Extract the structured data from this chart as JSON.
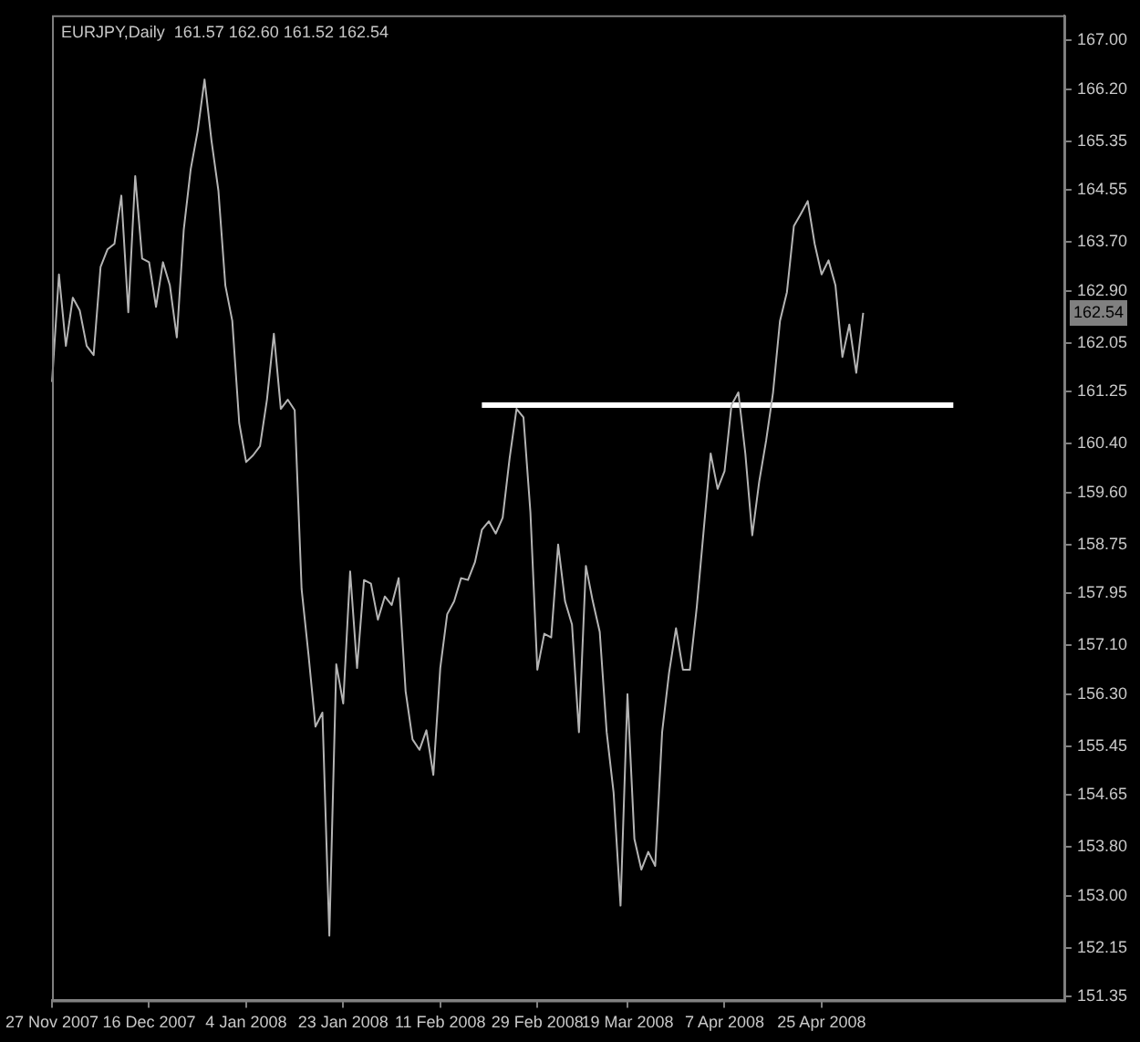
{
  "chart_data": {
    "type": "line",
    "title": "EURJPY,Daily  161.57 162.60 161.52 162.54",
    "categories": [
      "27 Nov 2007",
      null,
      null,
      null,
      null,
      null,
      null,
      null,
      null,
      null,
      null,
      null,
      null,
      null,
      "16 Dec 2007",
      null,
      null,
      null,
      null,
      null,
      null,
      null,
      null,
      null,
      null,
      null,
      null,
      null,
      "4 Jan 2008",
      null,
      null,
      null,
      null,
      null,
      null,
      null,
      null,
      null,
      null,
      null,
      null,
      null,
      "23 Jan 2008",
      null,
      null,
      null,
      null,
      null,
      null,
      null,
      null,
      null,
      null,
      null,
      null,
      null,
      "11 Feb 2008",
      null,
      null,
      null,
      null,
      null,
      null,
      null,
      null,
      null,
      null,
      null,
      null,
      null,
      "29 Feb 2008",
      null,
      null,
      null,
      null,
      null,
      null,
      null,
      null,
      null,
      null,
      null,
      null,
      "19 Mar 2008",
      null,
      null,
      null,
      null,
      null,
      null,
      null,
      null,
      null,
      null,
      null,
      null,
      null,
      "7 Apr 2008",
      null,
      null,
      null,
      null,
      null,
      null,
      null,
      null,
      null,
      null,
      null,
      null,
      null,
      "25 Apr 2008",
      null,
      null,
      null,
      null,
      null,
      null,
      null,
      null,
      null,
      null,
      null,
      null,
      null,
      null,
      null,
      null,
      null,
      null,
      null,
      null,
      null,
      null,
      null,
      null,
      null,
      null,
      null,
      null,
      null,
      null,
      null,
      null,
      null,
      null,
      null
    ],
    "series": [
      {
        "color": "#b4b4b4",
        "values": [
          161.41,
          163.17,
          162.0,
          162.79,
          162.58,
          162.0,
          161.85,
          163.29,
          163.58,
          163.67,
          164.46,
          162.55,
          164.78,
          163.43,
          163.37,
          162.64,
          163.37,
          162.99,
          162.14,
          163.9,
          164.89,
          165.51,
          166.36,
          165.36,
          164.54,
          162.99,
          162.41,
          160.74,
          160.1,
          160.21,
          160.36,
          161.12,
          162.2,
          160.97,
          161.12,
          160.95,
          158.02,
          156.94,
          155.77,
          156.0,
          152.35,
          156.79,
          156.15,
          158.31,
          156.73,
          158.17,
          158.11,
          157.52,
          157.9,
          157.76,
          158.2,
          156.35,
          155.56,
          155.39,
          155.71,
          154.98,
          156.73,
          157.61,
          157.82,
          158.2,
          158.17,
          158.46,
          158.99,
          159.13,
          158.93,
          159.19,
          160.16,
          160.97,
          160.83,
          159.28,
          156.7,
          157.29,
          157.23,
          158.75,
          157.82,
          157.44,
          155.68,
          158.4,
          157.82,
          157.32,
          155.68,
          154.69,
          152.84,
          156.3,
          153.93,
          153.43,
          153.72,
          153.49,
          155.68,
          156.65,
          157.38,
          156.7,
          156.7,
          157.73,
          158.99,
          160.24,
          159.66,
          159.95,
          161.03,
          161.24,
          160.24,
          158.9,
          159.78,
          160.45,
          161.24,
          162.41,
          162.88,
          163.96,
          164.16,
          164.37,
          163.67,
          163.17,
          163.4,
          162.99,
          161.82,
          162.35,
          161.56,
          162.54,
          null,
          null,
          null,
          null,
          null,
          null,
          null,
          null,
          null,
          null,
          null,
          null,
          null,
          null,
          null,
          null,
          null,
          null,
          null,
          null,
          null,
          null,
          null,
          null,
          null,
          null,
          null,
          null,
          null
        ]
      },
      {
        "color": "#ffffff",
        "values": [
          null,
          null,
          null,
          null,
          null,
          null,
          null,
          null,
          null,
          null,
          null,
          null,
          null,
          null,
          null,
          null,
          null,
          null,
          null,
          null,
          null,
          null,
          null,
          null,
          null,
          null,
          null,
          null,
          null,
          null,
          null,
          null,
          null,
          null,
          null,
          null,
          null,
          null,
          null,
          null,
          null,
          null,
          null,
          null,
          null,
          null,
          null,
          null,
          null,
          null,
          null,
          null,
          null,
          null,
          null,
          null,
          null,
          null,
          null,
          null,
          null,
          null,
          161.03,
          null,
          null,
          null,
          null,
          null,
          null,
          null,
          null,
          null,
          null,
          null,
          null,
          null,
          null,
          null,
          null,
          null,
          null,
          null,
          null,
          null,
          null,
          null,
          null,
          null,
          null,
          null,
          null,
          null,
          null,
          null,
          null,
          null,
          null,
          null,
          null,
          null,
          null,
          null,
          null,
          null,
          null,
          null,
          null,
          null,
          null,
          null,
          null,
          null,
          null,
          null,
          null,
          null,
          null,
          null,
          null,
          null,
          null,
          null,
          null,
          null,
          null,
          null,
          null,
          null,
          null,
          null,
          161.03,
          null,
          null,
          null,
          null,
          null,
          null,
          null,
          null,
          null,
          null,
          null,
          null,
          null,
          null,
          null,
          null
        ]
      }
    ],
    "ylim": [
      151.29,
      167.41
    ],
    "yticks": [
      {
        "value": 167,
        "label": "167.00"
      },
      {
        "value": 166.2,
        "label": "166.20"
      },
      {
        "value": 165.35,
        "label": "165.35"
      },
      {
        "value": 164.55,
        "label": "164.55"
      },
      {
        "value": 163.7,
        "label": "163.70"
      },
      {
        "value": 162.9,
        "label": "162.90"
      },
      {
        "value": 162.05,
        "label": "162.05"
      },
      {
        "value": 161.25,
        "label": "161.25"
      },
      {
        "value": 160.4,
        "label": "160.40"
      },
      {
        "value": 159.6,
        "label": "159.60"
      },
      {
        "value": 158.75,
        "label": "158.75"
      },
      {
        "value": 157.95,
        "label": "157.95"
      },
      {
        "value": 157.1,
        "label": "157.10"
      },
      {
        "value": 156.3,
        "label": "156.30"
      },
      {
        "value": 155.45,
        "label": "155.45"
      },
      {
        "value": 154.65,
        "label": "154.65"
      },
      {
        "value": 153.8,
        "label": "153.80"
      },
      {
        "value": 153,
        "label": "153.00"
      },
      {
        "value": 152.15,
        "label": "152.15"
      },
      {
        "value": 151.35,
        "label": "151.35"
      }
    ],
    "annotations": [
      {
        "text": "162.54",
        "y": 162.54
      }
    ],
    "marker": "none",
    "line_style": "solid"
  }
}
